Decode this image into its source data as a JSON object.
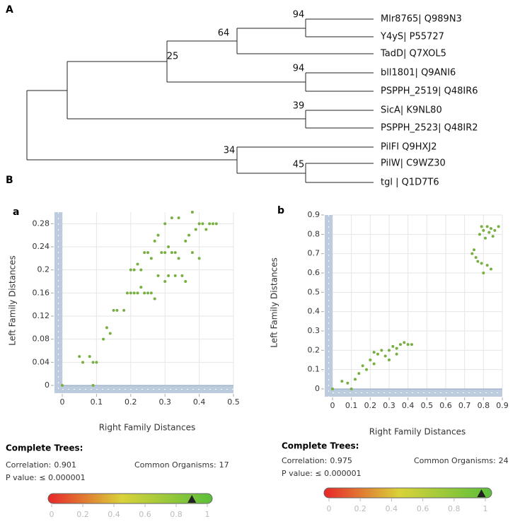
{
  "panel_labels": [
    "A",
    "B"
  ],
  "tree": {
    "leaves": [
      "Mlr8765| Q989N3",
      "Y4yS| P55727",
      "TadD| Q7XOL5",
      "bll1801| Q9ANI6",
      "PSPPH_2519| Q48IR6",
      "SicA| K9NL80",
      "PSPPH_2523| Q48IR2",
      "PilFI Q9HXJ2",
      "PilW| C9WZ30",
      "tgl | Q1D7T6"
    ],
    "bootstrap": [
      "94",
      "64",
      "25",
      "94",
      "39",
      "34",
      "45"
    ]
  },
  "chart_data": [
    {
      "type": "scatter",
      "label": "a",
      "x_label": "Right Family Distances",
      "y_label": "Left Family Distances",
      "color": "#77b041",
      "xlim": [
        0,
        0.5
      ],
      "ylim": [
        0,
        0.3
      ],
      "xticks": [
        0,
        0.1,
        0.2,
        0.3,
        0.4,
        0.5
      ],
      "yticks": [
        0,
        0.04,
        0.08,
        0.12,
        0.16,
        0.2,
        0.24,
        0.28
      ],
      "grid": true,
      "x": [
        0,
        0.05,
        0.06,
        0.08,
        0.09,
        0.09,
        0.1,
        0.12,
        0.13,
        0.14,
        0.15,
        0.16,
        0.18,
        0.19,
        0.2,
        0.21,
        0.22,
        0.23,
        0.24,
        0.25,
        0.26,
        0.27,
        0.2,
        0.21,
        0.22,
        0.23,
        0.24,
        0.25,
        0.26,
        0.27,
        0.28,
        0.29,
        0.3,
        0.31,
        0.32,
        0.33,
        0.34,
        0.3,
        0.31,
        0.33,
        0.35,
        0.36,
        0.3,
        0.32,
        0.34,
        0.36,
        0.37,
        0.38,
        0.39,
        0.4,
        0.41,
        0.42,
        0.43,
        0.44,
        0.45,
        0.38,
        0.4,
        0.28
      ],
      "values": [
        0,
        0.05,
        0.04,
        0.05,
        0,
        0.04,
        0.04,
        0.08,
        0.1,
        0.09,
        0.13,
        0.13,
        0.13,
        0.16,
        0.16,
        0.16,
        0.16,
        0.17,
        0.16,
        0.16,
        0.16,
        0.15,
        0.2,
        0.2,
        0.21,
        0.2,
        0.23,
        0.23,
        0.22,
        0.25,
        0.26,
        0.23,
        0.23,
        0.24,
        0.23,
        0.23,
        0.22,
        0.18,
        0.19,
        0.19,
        0.19,
        0.18,
        0.28,
        0.29,
        0.29,
        0.25,
        0.26,
        0.3,
        0.27,
        0.28,
        0.28,
        0.27,
        0.28,
        0.28,
        0.28,
        0.23,
        0.22,
        0.19
      ]
    },
    {
      "type": "scatter",
      "label": "b",
      "x_label": "Right Family Distances",
      "y_label": "Left Family Distances",
      "color": "#77b041",
      "xlim": [
        0,
        0.9
      ],
      "ylim": [
        0,
        0.9
      ],
      "xticks": [
        0,
        0.1,
        0.2,
        0.3,
        0.4,
        0.5,
        0.6,
        0.7,
        0.8,
        0.9
      ],
      "yticks": [
        0,
        0.1,
        0.2,
        0.3,
        0.4,
        0.5,
        0.6,
        0.7,
        0.8,
        0.9
      ],
      "grid": true,
      "x": [
        0,
        0.05,
        0.08,
        0.1,
        0.12,
        0.14,
        0.16,
        0.18,
        0.2,
        0.22,
        0.24,
        0.26,
        0.28,
        0.3,
        0.32,
        0.34,
        0.36,
        0.38,
        0.4,
        0.42,
        0.3,
        0.34,
        0.22,
        0.74,
        0.75,
        0.76,
        0.78,
        0.8,
        0.82,
        0.84,
        0.86,
        0.88,
        0.79,
        0.82,
        0.84,
        0.8,
        0.77,
        0.81,
        0.83,
        0.79,
        0.85
      ],
      "values": [
        0,
        0.04,
        0.03,
        0,
        0.05,
        0.08,
        0.12,
        0.1,
        0.15,
        0.13,
        0.18,
        0.2,
        0.17,
        0.2,
        0.22,
        0.21,
        0.23,
        0.24,
        0.23,
        0.23,
        0.15,
        0.18,
        0.19,
        0.7,
        0.72,
        0.68,
        0.8,
        0.82,
        0.84,
        0.83,
        0.82,
        0.84,
        0.65,
        0.64,
        0.62,
        0.6,
        0.66,
        0.78,
        0.81,
        0.84,
        0.79
      ]
    }
  ],
  "summaries": [
    {
      "heading": "Complete Trees:",
      "correlation_label": "Correlation:",
      "correlation": 0.901,
      "organisms_label": "Common Organisms:",
      "organisms": 17,
      "p_value": "P value: ≤ 0.000001",
      "scale_ticks": [
        0,
        0.2,
        0.4,
        0.6,
        0.8,
        1
      ]
    },
    {
      "heading": "Complete Trees:",
      "correlation_label": "Correlation:",
      "correlation": 0.975,
      "organisms_label": "Common Organisms:",
      "organisms": 24,
      "p_value": "P value: ≤ 0.000001",
      "scale_ticks": [
        0,
        0.2,
        0.4,
        0.6,
        0.8,
        1
      ]
    }
  ]
}
